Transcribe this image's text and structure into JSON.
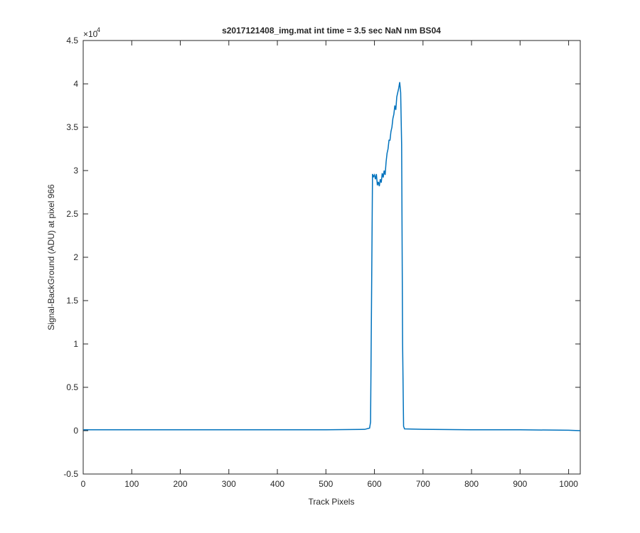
{
  "chart_data": {
    "type": "line",
    "title": "s2017121408_img.mat int time = 3.5 sec  NaN nm BS04",
    "x_label": "Track Pixels",
    "y_label": "Signal-BackGround (ADU) at pixel 966",
    "y_exponent_base": "×10",
    "y_exponent": "4",
    "x": [
      0,
      100,
      200,
      300,
      400,
      500,
      580,
      590,
      592,
      594,
      596,
      598,
      600,
      602,
      604,
      606,
      608,
      610,
      612,
      614,
      616,
      618,
      620,
      622,
      624,
      626,
      628,
      630,
      632,
      634,
      636,
      638,
      640,
      642,
      644,
      646,
      648,
      650,
      652,
      654,
      656,
      658,
      660,
      662,
      700,
      800,
      900,
      1000,
      1024
    ],
    "series": [
      {
        "color": "#0072bd",
        "values": [
          0.01,
          0.01,
          0.01,
          0.01,
          0.01,
          0.01,
          0.015,
          0.03,
          0.1,
          1.5,
          2.96,
          2.93,
          2.95,
          2.9,
          2.96,
          2.83,
          2.87,
          2.82,
          2.9,
          2.86,
          2.97,
          2.92,
          3.0,
          2.95,
          3.1,
          3.2,
          3.25,
          3.35,
          3.35,
          3.45,
          3.5,
          3.6,
          3.65,
          3.75,
          3.7,
          3.85,
          3.9,
          3.95,
          4.02,
          3.9,
          3.3,
          1.0,
          0.05,
          0.02,
          0.015,
          0.01,
          0.01,
          0.005,
          0.0
        ]
      }
    ],
    "xlim": [
      0,
      1024
    ],
    "xticks": [
      0,
      100,
      200,
      300,
      400,
      500,
      600,
      700,
      800,
      900,
      1000
    ],
    "ylim": [
      -0.5,
      4.5
    ],
    "yticks": [
      -0.5,
      0,
      0.5,
      1,
      1.5,
      2,
      2.5,
      3,
      3.5,
      4,
      4.5
    ]
  }
}
